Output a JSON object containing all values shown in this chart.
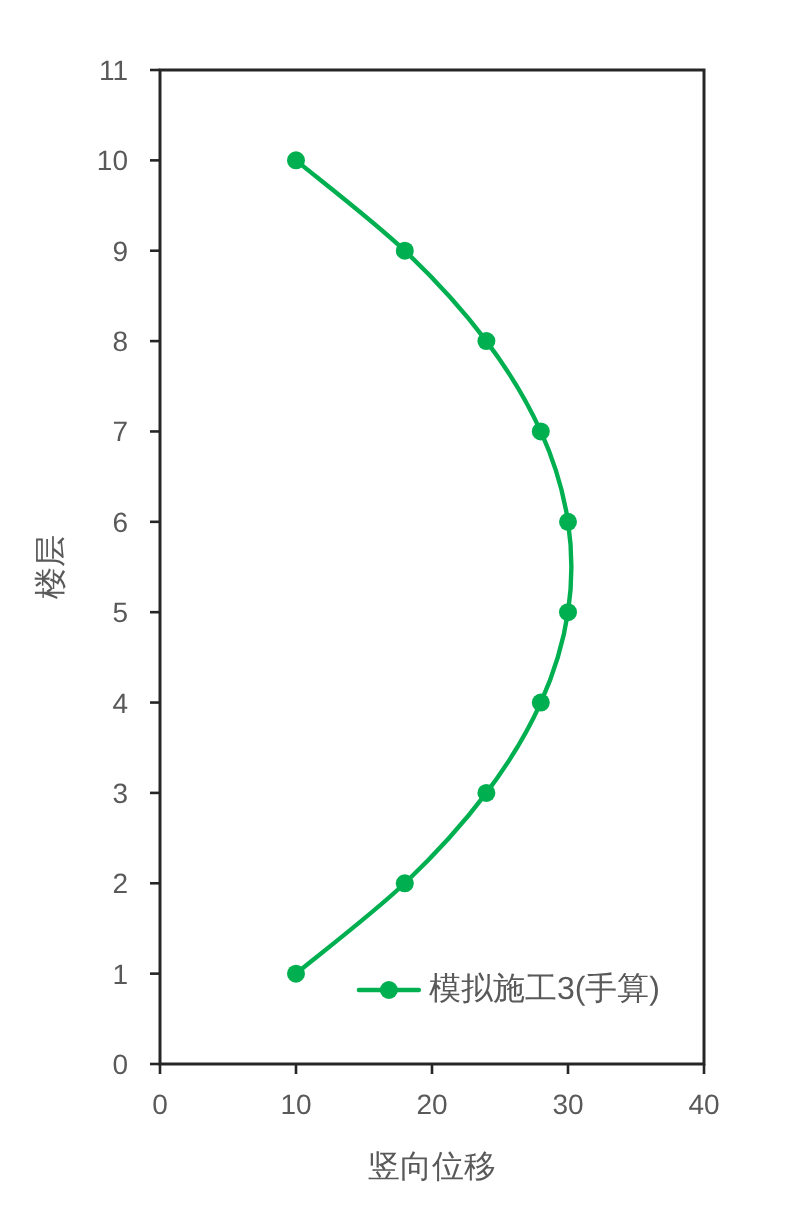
{
  "chart_data": {
    "type": "line",
    "xlabel": "竖向位移",
    "ylabel": "楼层",
    "xlim": [
      0,
      40
    ],
    "xticks": [
      0,
      10,
      20,
      30,
      40
    ],
    "ylim": [
      0,
      11
    ],
    "yticks": [
      0,
      1,
      2,
      3,
      4,
      5,
      6,
      7,
      8,
      9,
      10,
      11
    ],
    "marker": "circle",
    "line_style": "solid",
    "legend": "bottom right",
    "series": [
      {
        "name": "模拟施工3(手算)",
        "color": "#00b050",
        "x": [
          10,
          18,
          24,
          28,
          30,
          30,
          28,
          24,
          18,
          10
        ],
        "values": [
          1,
          2,
          3,
          4,
          5,
          6,
          7,
          8,
          9,
          10
        ]
      }
    ]
  }
}
